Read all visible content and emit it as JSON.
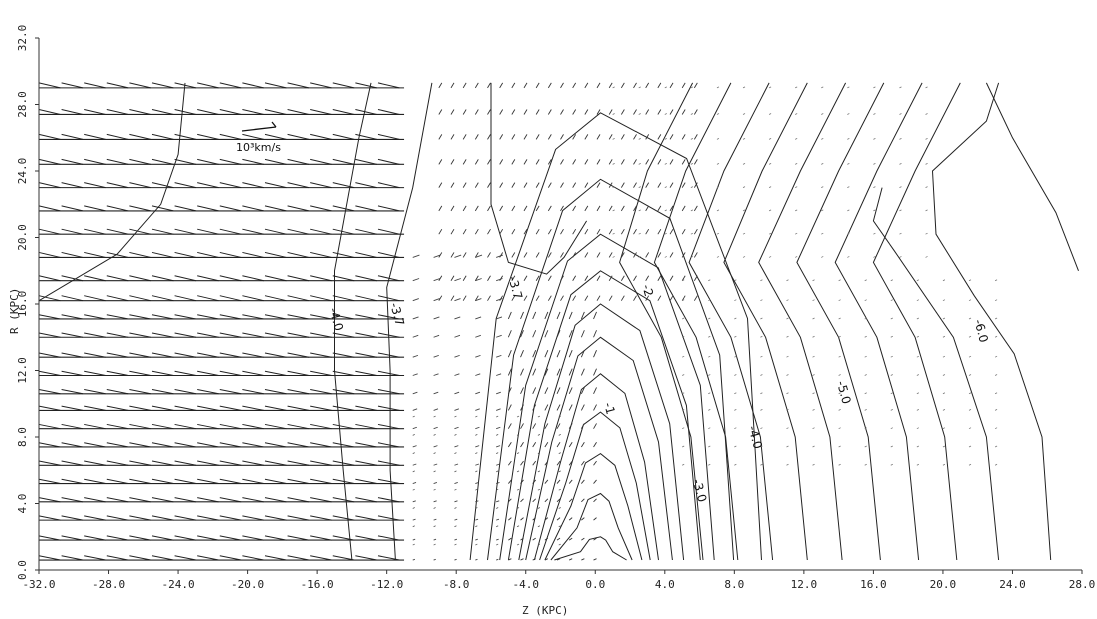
{
  "chart_data": {
    "type": "contour",
    "xlabel": "Z (KPC)",
    "ylabel": "R (KPC)",
    "xlim": [
      -32,
      28
    ],
    "ylim": [
      0,
      32
    ],
    "x_ticks": [
      "-32.0",
      "-28.0",
      "-24.0",
      "-20.0",
      "-16.0",
      "-12.0",
      "-8.0",
      "-4.0",
      "0.0",
      "4.0",
      "8.0",
      "12.0",
      "16.0",
      "20.0",
      "24.0",
      "28.0"
    ],
    "y_ticks": [
      "0.0",
      "4.0",
      "8.0",
      "12.0",
      "16.0",
      "20.0",
      "24.0",
      "28.0",
      "32.0"
    ],
    "grid": false,
    "reference_vector_label": "10³km/s",
    "contour_labels": [
      {
        "text": "-1",
        "x": 0.5,
        "y": 10.0
      },
      {
        "text": "-2",
        "x": 2.7,
        "y": 17.1
      },
      {
        "text": "-3.0",
        "x": 5.6,
        "y": 5.4
      },
      {
        "text": "-4.0",
        "x": 8.8,
        "y": 8.6
      },
      {
        "text": "-5.0",
        "x": 13.9,
        "y": 11.3
      },
      {
        "text": "-6.0",
        "x": 21.8,
        "y": 15.0
      },
      {
        "text": "-3.7",
        "x": -5.0,
        "y": 17.6
      },
      {
        "text": "-4.0",
        "x": -15.3,
        "y": 15.7
      },
      {
        "text": "-3.7",
        "x": -11.8,
        "y": 16.0
      }
    ],
    "vector_field": {
      "rows_r": [
        0.6,
        1.8,
        3.0,
        4.1,
        5.2,
        6.3,
        7.4,
        8.5,
        9.6,
        10.6,
        11.7,
        12.8,
        14.0,
        15.1,
        16.2,
        17.4,
        18.8,
        20.2,
        21.6,
        23.0,
        24.4,
        25.9,
        27.4,
        29.0
      ],
      "z_start": -32,
      "z_end": -11,
      "arrow_dz": 1.3
    }
  }
}
